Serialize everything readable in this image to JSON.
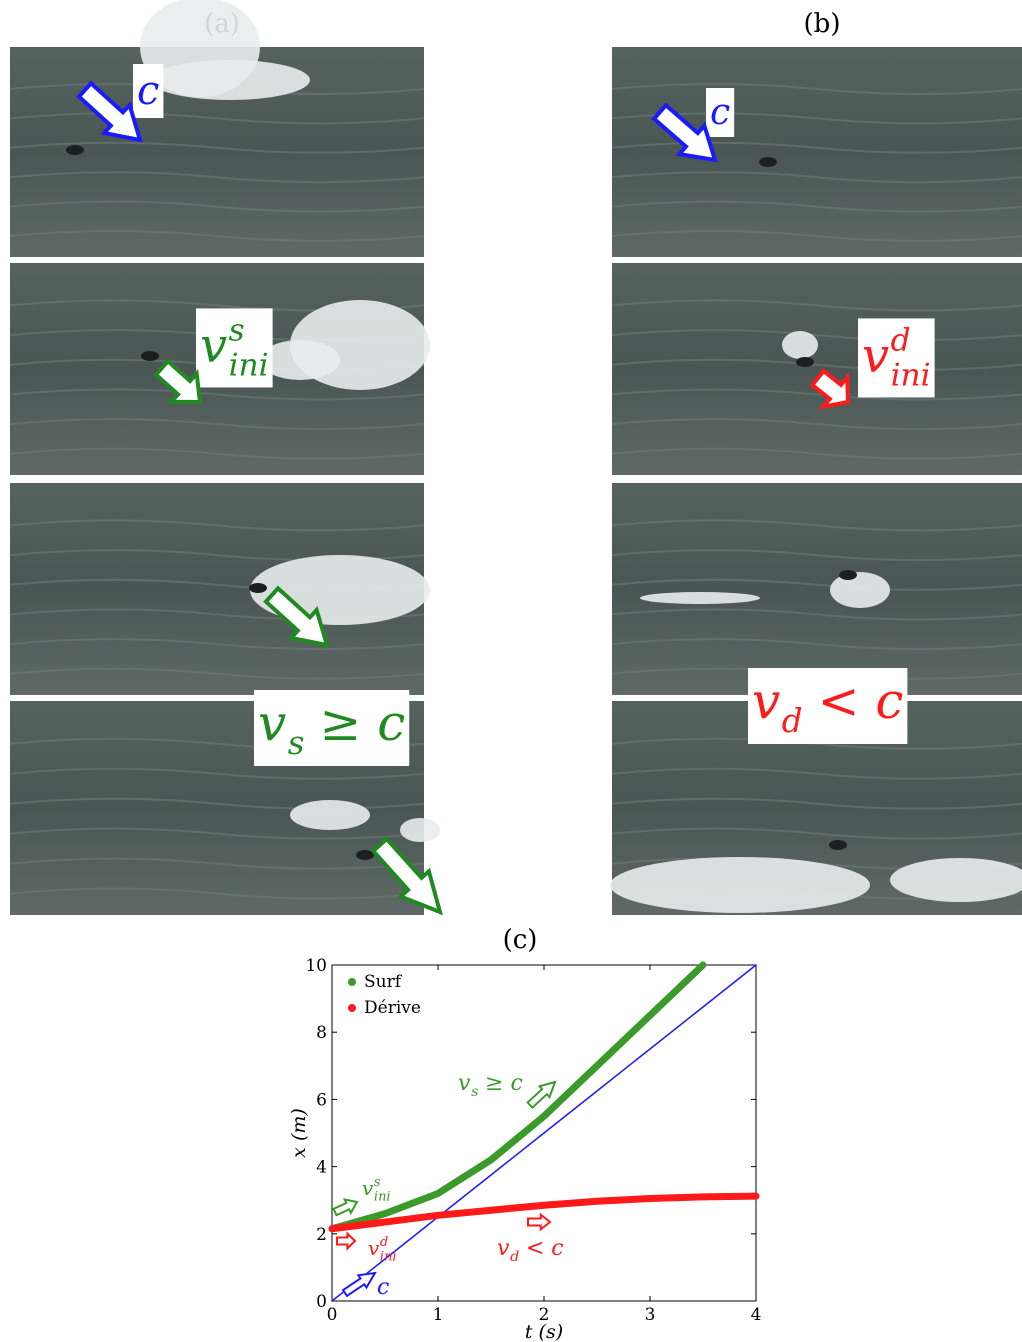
{
  "panels": [
    {
      "title": "(a)",
      "labels": [
        {
          "base": "c",
          "color": "#1a1aff"
        },
        {
          "base": "v",
          "sup": "s",
          "sub": "ini",
          "color": "#1f8a1f"
        },
        {
          "base": "v",
          "sub": "s",
          "rest": "≥ c",
          "color": "#1f8a1f"
        }
      ]
    },
    {
      "title": "(b)",
      "labels": [
        {
          "base": "c",
          "color": "#1a1aff"
        },
        {
          "base": "v",
          "sup": "d",
          "sub": "ini",
          "color": "#ff1a1a"
        },
        {
          "base": "v",
          "sub": "d",
          "rest": "< c",
          "color": "#ff1a1a"
        }
      ]
    }
  ],
  "chart_data": {
    "type": "line",
    "title": "(c)",
    "x_label": "t (s)",
    "y_label": "x (m)",
    "x": [
      0,
      0.5,
      1,
      1.5,
      2,
      2.5,
      3,
      3.5,
      4
    ],
    "series": [
      {
        "name": "Surf",
        "color": "#3a9a2a",
        "values": [
          2.15,
          2.6,
          3.2,
          4.2,
          5.5,
          7.0,
          8.5,
          10,
          null
        ]
      },
      {
        "name": "Dérive",
        "color": "#ff1a1a",
        "values": [
          2.15,
          2.35,
          2.55,
          2.7,
          2.85,
          2.97,
          3.05,
          3.1,
          3.12
        ]
      },
      {
        "color": "#1a1aff",
        "values": [
          0,
          1.25,
          2.5,
          3.75,
          5,
          6.25,
          7.5,
          8.75,
          10
        ]
      }
    ],
    "annotations": [
      {
        "base": "v",
        "sub": "s",
        "rest": "≥ c",
        "color": "#3a9a2a"
      },
      {
        "base": "v",
        "sup": "s",
        "sub": "ini",
        "color": "#3a9a2a"
      },
      {
        "base": "v",
        "sup": "d",
        "sub": "ini",
        "color": "#ff1a1a"
      },
      {
        "base": "v",
        "sub": "d",
        "rest": "< c",
        "color": "#ff1a1a"
      },
      {
        "base": "c",
        "color": "#1a1aff"
      }
    ],
    "xlim": [
      0,
      4
    ],
    "ylim": [
      0,
      10
    ],
    "xticks": [
      0,
      1,
      2,
      3,
      4
    ],
    "yticks": [
      0,
      2,
      4,
      6,
      8,
      10
    ],
    "legend": "upper-left"
  }
}
